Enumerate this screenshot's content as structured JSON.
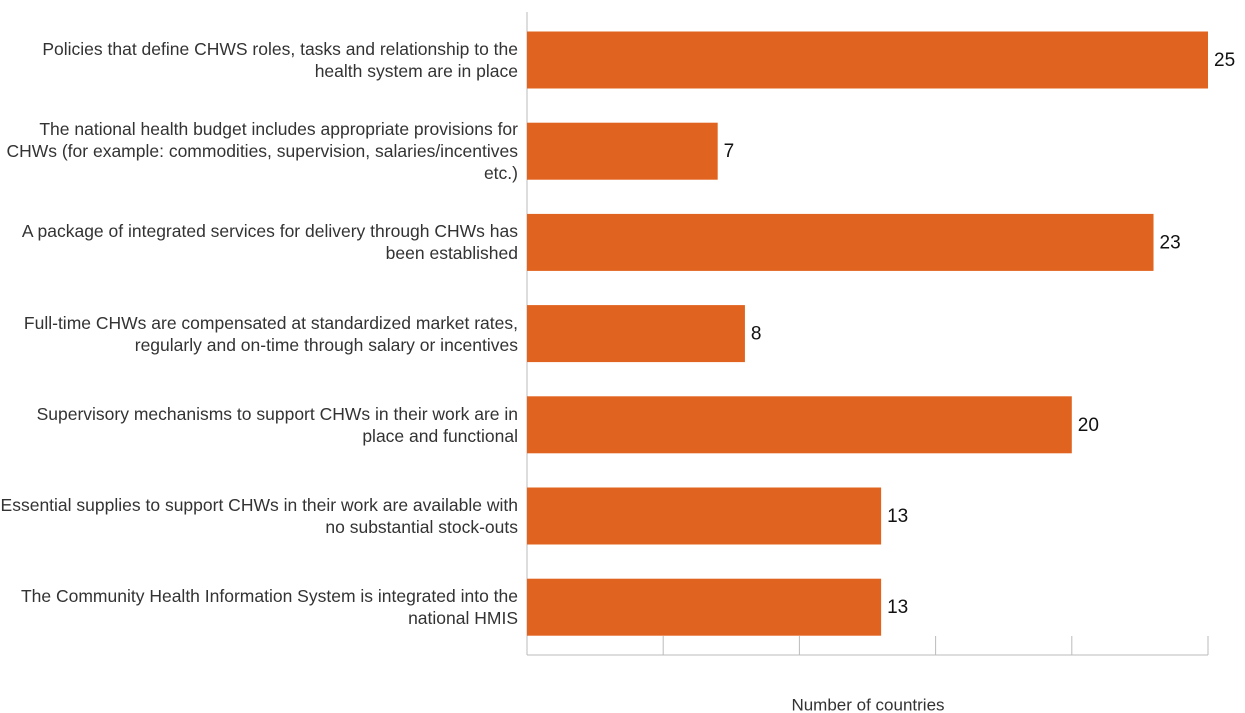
{
  "chart_data": {
    "type": "barh",
    "x_label": "Number of countries",
    "categories": [
      "Policies that define CHWS roles, tasks and relationship to the health system are in place",
      "The national health budget includes appropriate provisions for CHWs (for example: commodities, supervision, salaries/incentives etc.)",
      "A package of integrated services for delivery through CHWs has been established",
      "Full-time CHWs are compensated at standardized market rates, regularly and on-time through salary or incentives",
      "Supervisory mechanisms to support CHWs in their work are in place and functional",
      "Essential supplies to support CHWs in their work are available with no substantial stock-outs",
      "The Community Health Information System is integrated into the national HMIS"
    ],
    "values": [
      25,
      7,
      23,
      8,
      20,
      13,
      13
    ],
    "color": "#e0631f",
    "xlim": [
      0,
      25
    ],
    "xticks": [
      0,
      5,
      10,
      15,
      20,
      25
    ]
  }
}
